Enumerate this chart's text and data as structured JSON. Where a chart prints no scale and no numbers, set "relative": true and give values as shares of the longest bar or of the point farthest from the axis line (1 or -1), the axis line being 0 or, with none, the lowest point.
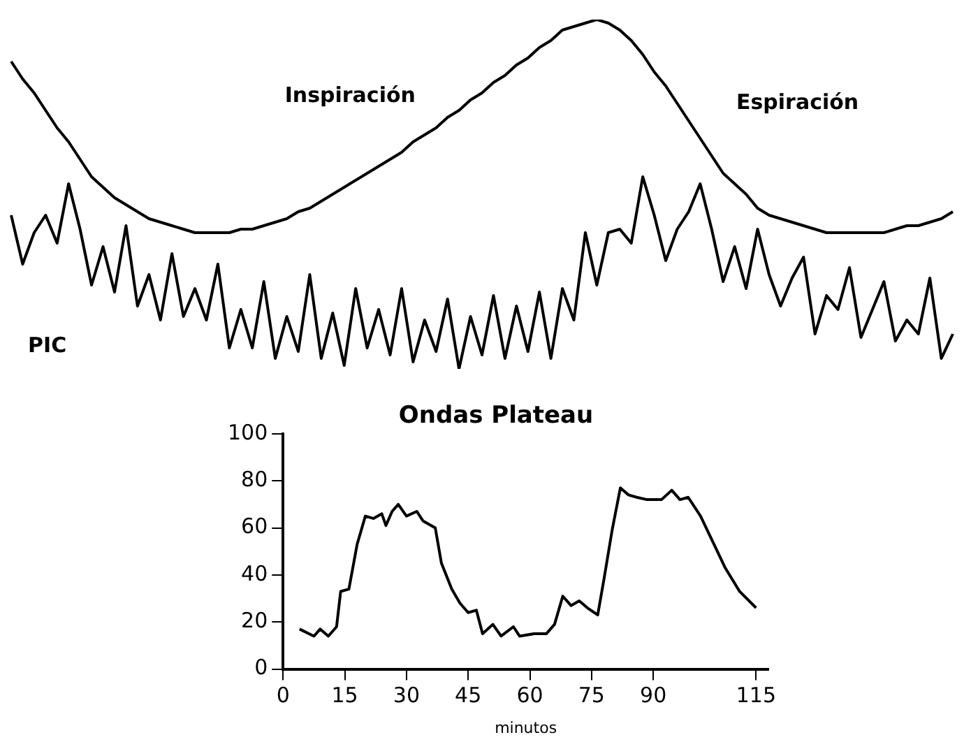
{
  "chart_data": [
    {
      "type": "line",
      "relative": true,
      "categories": [
        null,
        null,
        null,
        null,
        null,
        null,
        null,
        null,
        null,
        null,
        null,
        null,
        null,
        null,
        null,
        null,
        null,
        null,
        null,
        null,
        null,
        null,
        null,
        null,
        null,
        null,
        null,
        null,
        null,
        null,
        null,
        null,
        null,
        null,
        null,
        null,
        null,
        null,
        null,
        null,
        null,
        null,
        null,
        null,
        null,
        null,
        null,
        null,
        null,
        null,
        null,
        null,
        null,
        null,
        null,
        null,
        null,
        null,
        null,
        null,
        null,
        null,
        null,
        null,
        null,
        null,
        null,
        null,
        null,
        null,
        null,
        null,
        null,
        null,
        null,
        null,
        null,
        null,
        null,
        null,
        null,
        null,
        null
      ],
      "annotations": [
        "Inspiración",
        "Espiración"
      ],
      "series": [
        {
          "color": "#000000",
          "values": [
            0.88,
            0.83,
            0.79,
            0.74,
            0.69,
            0.65,
            0.6,
            0.55,
            0.52,
            0.49,
            0.47,
            0.45,
            0.43,
            0.42,
            0.41,
            0.4,
            0.39,
            0.39,
            0.39,
            0.39,
            0.4,
            0.4,
            0.41,
            0.42,
            0.43,
            0.45,
            0.46,
            0.48,
            0.5,
            0.52,
            0.54,
            0.56,
            0.58,
            0.6,
            0.62,
            0.65,
            0.67,
            0.69,
            0.72,
            0.74,
            0.77,
            0.79,
            0.82,
            0.84,
            0.87,
            0.89,
            0.92,
            0.94,
            0.97,
            0.98,
            0.99,
            1.0,
            0.99,
            0.97,
            0.94,
            0.9,
            0.85,
            0.81,
            0.76,
            0.71,
            0.66,
            0.61,
            0.56,
            0.53,
            0.5,
            0.46,
            0.44,
            0.43,
            0.42,
            0.41,
            0.4,
            0.39,
            0.39,
            0.39,
            0.39,
            0.39,
            0.39,
            0.4,
            0.41,
            0.41,
            0.42,
            0.43,
            0.45
          ]
        },
        {
          "name": "PIC",
          "color": "#000000",
          "values": [
            0.44,
            0.3,
            0.39,
            0.44,
            0.36,
            0.53,
            0.4,
            0.24,
            0.35,
            0.22,
            0.41,
            0.18,
            0.27,
            0.14,
            0.33,
            0.15,
            0.23,
            0.14,
            0.3,
            0.06,
            0.17,
            0.06,
            0.25,
            0.03,
            0.15,
            0.05,
            0.27,
            0.03,
            0.16,
            0.01,
            0.23,
            0.06,
            0.17,
            0.04,
            0.23,
            0.02,
            0.14,
            0.05,
            0.2,
            0,
            0.15,
            0.04,
            0.21,
            0.03,
            0.18,
            0.05,
            0.22,
            0.03,
            0.23,
            0.14,
            0.39,
            0.24,
            0.39,
            0.4,
            0.36,
            0.55,
            0.44,
            0.31,
            0.4,
            0.45,
            0.53,
            0.4,
            0.25,
            0.35,
            0.23,
            0.4,
            0.27,
            0.18,
            0.26,
            0.32,
            0.1,
            0.21,
            0.17,
            0.29,
            0.09,
            0.17,
            0.25,
            0.08,
            0.14,
            0.1,
            0.26,
            0.03,
            0.1
          ]
        }
      ]
    },
    {
      "type": "line",
      "title": "Ondas Plateau",
      "xlabel": "minutos",
      "x": [
        4,
        7.5,
        9,
        11,
        13,
        14,
        16,
        18,
        20,
        22,
        24,
        25,
        26.5,
        28,
        30,
        32.5,
        34,
        37,
        38.5,
        41,
        43,
        45,
        47,
        48.5,
        51,
        53,
        56,
        57.5,
        61,
        64,
        66,
        68,
        70,
        72,
        74,
        76.5,
        78,
        80,
        82,
        84,
        86,
        88.5,
        92,
        94.5,
        96.5,
        98.5,
        101.5,
        104.5,
        107.5,
        111,
        115
      ],
      "values": [
        17,
        14,
        17,
        14,
        18,
        33,
        34,
        53,
        65,
        64,
        66,
        61,
        67,
        70,
        65,
        67,
        63,
        60,
        45,
        34,
        28,
        24,
        25,
        15,
        19,
        14,
        18,
        14,
        15,
        15,
        19,
        31,
        27,
        29,
        26,
        23,
        38,
        59,
        77,
        74,
        73,
        72,
        72,
        76,
        72,
        73,
        65,
        54,
        43,
        33,
        26
      ],
      "color": "#000000",
      "xlim": [
        0,
        118
      ],
      "xticks": [
        0,
        15,
        30,
        45,
        60,
        75,
        90,
        115
      ],
      "ylim": [
        0,
        100
      ],
      "yticks": [
        0,
        20,
        40,
        60,
        80,
        100
      ]
    }
  ]
}
